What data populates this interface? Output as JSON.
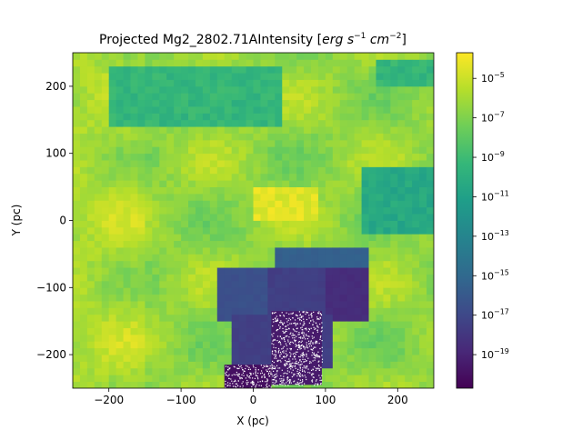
{
  "chart_data": {
    "type": "heatmap",
    "title_main": "Projected Mg2_2802.71AIntensity",
    "title_units": {
      "open": "[",
      "text_a": "erg s",
      "sup_a": "−1",
      "text_b": " cm",
      "sup_b": "−2",
      "close": "]"
    },
    "xlabel": "X (pc)",
    "ylabel": "Y (pc)",
    "xlim": [
      -250,
      250
    ],
    "ylim": [
      -250,
      250
    ],
    "xticks": [
      -200,
      -100,
      0,
      100,
      200
    ],
    "yticks": [
      -200,
      -100,
      0,
      100,
      200
    ],
    "xtick_labels": [
      "−200",
      "−100",
      "0",
      "100",
      "200"
    ],
    "ytick_labels": [
      "−200",
      "−100",
      "0",
      "100",
      "200"
    ],
    "colorbar": {
      "scale": "log",
      "range_log10": [
        -20.7,
        -3.7
      ],
      "colormap": "viridis",
      "ticks_log10": [
        -19,
        -17,
        -15,
        -13,
        -11,
        -9,
        -7,
        -5
      ],
      "tick_labels": [
        "10",
        "10",
        "10",
        "10",
        "10",
        "10",
        "10",
        "10"
      ],
      "tick_exponents": [
        "−19",
        "−17",
        "−15",
        "−13",
        "−11",
        "−9",
        "−7",
        "−5"
      ],
      "colors": [
        "#440154",
        "#482878",
        "#3e4989",
        "#31688e",
        "#26828e",
        "#1f9e89",
        "#35b779",
        "#6ece58",
        "#b5de2b",
        "#fde725"
      ]
    },
    "regions": [
      {
        "type": "background",
        "log10": -6.5
      },
      {
        "type": "upper-teal-band",
        "x": [
          -200,
          40
        ],
        "y": [
          140,
          225
        ],
        "log10": -9.5
      },
      {
        "type": "upper-right-teal",
        "x": [
          170,
          245
        ],
        "y": [
          200,
          240
        ],
        "log10": -9.5
      },
      {
        "type": "right-teal-column",
        "x": [
          150,
          250
        ],
        "y": [
          -20,
          75
        ],
        "log10": -10.5
      },
      {
        "type": "central-bright-glow",
        "x": [
          0,
          90
        ],
        "y": [
          0,
          45
        ],
        "log10": -4.5
      },
      {
        "type": "dark-cloud-top",
        "x": [
          30,
          160
        ],
        "y": [
          -70,
          -40
        ],
        "log10": -15.5
      },
      {
        "type": "dark-cloud-left",
        "x": [
          -45,
          40
        ],
        "y": [
          -150,
          -70
        ],
        "log10": -16.5
      },
      {
        "type": "dark-cloud-center",
        "x": [
          25,
          100
        ],
        "y": [
          -150,
          -70
        ],
        "log10": -17.5
      },
      {
        "type": "dark-cloud-right",
        "x": [
          100,
          160
        ],
        "y": [
          -145,
          -70
        ],
        "log10": -18.5
      },
      {
        "type": "dark-cloud-lower",
        "x": [
          -25,
          110
        ],
        "y": [
          -220,
          -145
        ],
        "log10": -17.5
      },
      {
        "type": "noise-patch-left",
        "x": [
          -40,
          25
        ],
        "y": [
          -250,
          -215
        ],
        "log10": -20
      },
      {
        "type": "noise-patch-center",
        "x": [
          25,
          95
        ],
        "y": [
          -245,
          -135
        ],
        "log10": -19.5
      }
    ]
  }
}
